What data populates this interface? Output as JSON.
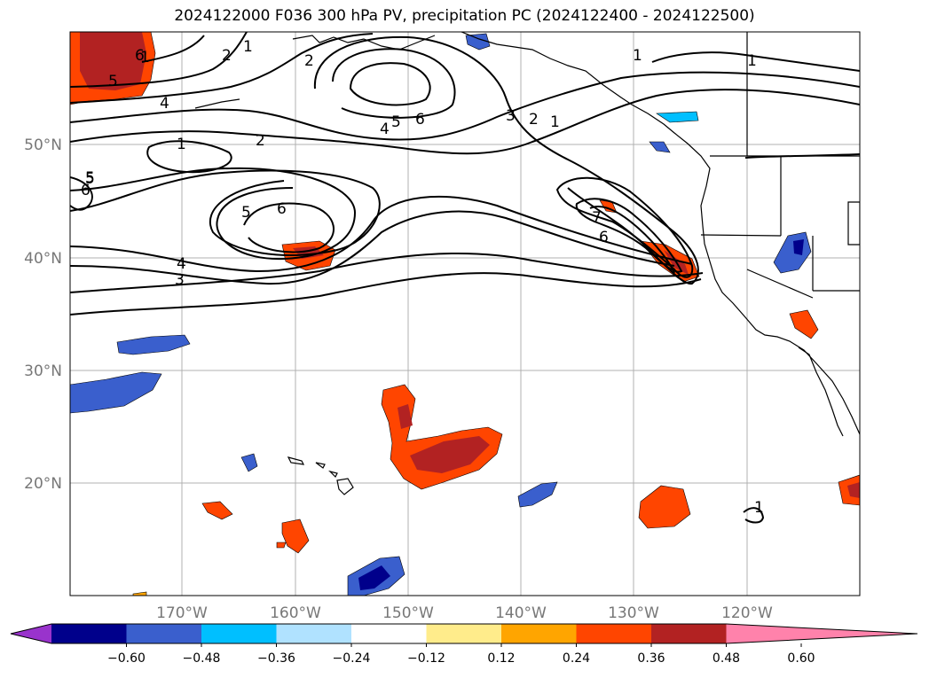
{
  "title": "2024122000 F036 300 hPa PV, precipitation PC (2024122400 - 2024122500)",
  "lat_labels": [
    "50°N",
    "40°N",
    "30°N",
    "20°N"
  ],
  "lon_labels": [
    "170°W",
    "160°W",
    "150°W",
    "140°W",
    "130°W",
    "120°W"
  ],
  "colorbar": {
    "ticks": [
      "−0.60",
      "−0.48",
      "−0.36",
      "−0.24",
      "−0.12",
      "0.12",
      "0.24",
      "0.36",
      "0.48",
      "0.60"
    ],
    "colors": [
      "#9933cc",
      "#00008b",
      "#3a5fcd",
      "#00bfff",
      "#b0e2ff",
      "#ffffff",
      "#ffec8b",
      "#ffa500",
      "#ff4500",
      "#b22222",
      "#ff82ab"
    ]
  },
  "contour_labels": [
    "1",
    "2",
    "2",
    "1",
    "4",
    "5",
    "6",
    "5",
    "1",
    "2",
    "4",
    "5",
    "6",
    "3",
    "2",
    "1",
    "1",
    "5",
    "6",
    "5",
    "6",
    "4",
    "3",
    "7",
    "6",
    "1",
    "1"
  ]
}
